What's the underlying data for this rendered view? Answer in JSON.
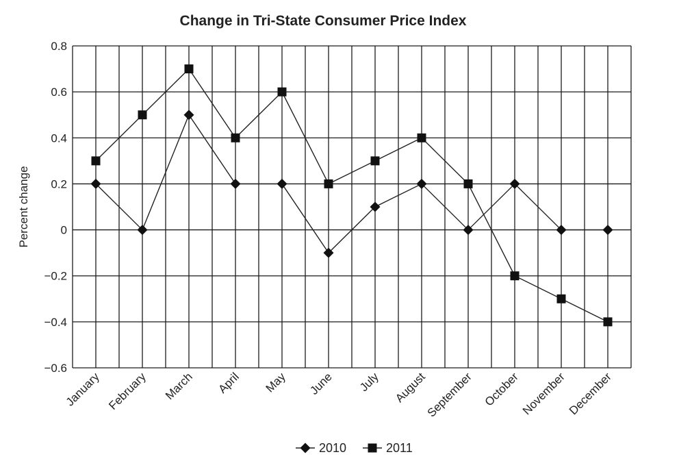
{
  "chart_data": {
    "type": "line",
    "title": "Change in Tri-State Consumer Price Index",
    "xlabel": "",
    "ylabel": "Percent change",
    "categories": [
      "January",
      "February",
      "March",
      "April",
      "May",
      "June",
      "July",
      "August",
      "September",
      "October",
      "November",
      "December"
    ],
    "ylim": [
      -0.6,
      0.8
    ],
    "yticks": [
      {
        "value": 0.8,
        "label": "0.8"
      },
      {
        "value": 0.6,
        "label": "0.6"
      },
      {
        "value": 0.4,
        "label": "0.4"
      },
      {
        "value": 0.2,
        "label": "0.2"
      },
      {
        "value": 0,
        "label": "0"
      },
      {
        "value": -0.2,
        "label": "−0.2"
      },
      {
        "value": -0.4,
        "label": "−0.4"
      },
      {
        "value": -0.6,
        "label": "−0.6"
      }
    ],
    "grid": true,
    "legend_position": "bottom-center",
    "series": [
      {
        "name": "2010",
        "marker": "diamond",
        "values": [
          0.2,
          0,
          0.5,
          0.2,
          0.2,
          -0.1,
          0.1,
          0.2,
          0,
          0.2,
          0,
          0
        ]
      },
      {
        "name": "2011",
        "marker": "square",
        "values": [
          0.3,
          0.5,
          0.7,
          0.4,
          0.6,
          0.2,
          0.3,
          0.4,
          0.2,
          -0.2,
          -0.3,
          -0.4
        ]
      }
    ],
    "colors": {
      "line": "#222222",
      "marker": "#111111",
      "grid": "#1a1a1a"
    }
  }
}
